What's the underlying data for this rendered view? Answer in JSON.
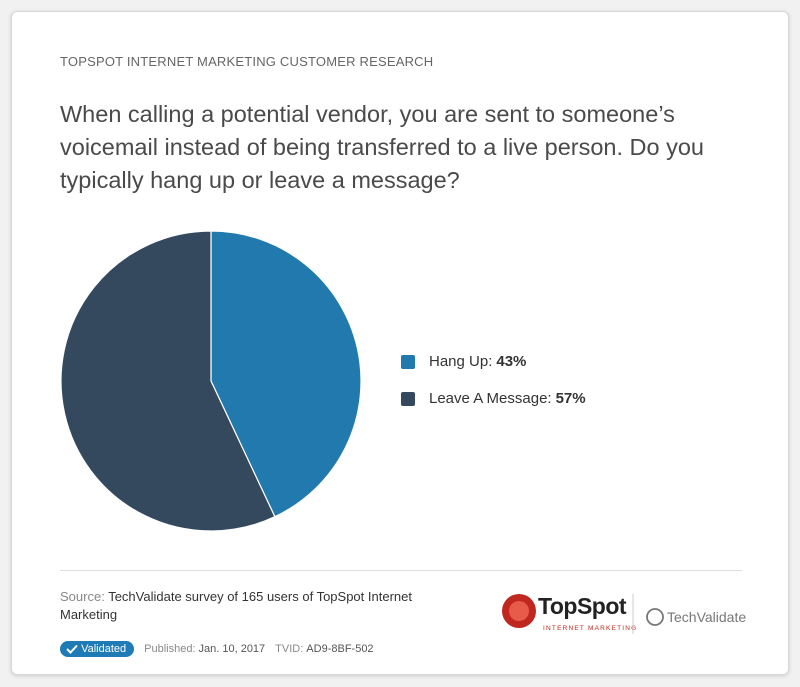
{
  "header": {
    "eyebrow": "TOPSPOT INTERNET MARKETING CUSTOMER RESEARCH"
  },
  "chart_data": {
    "type": "pie",
    "title": "When calling a potential vendor, you are sent to someone’s voicemail instead of being transferred to a live person. Do you typically hang up or leave a message?",
    "categories": [
      "Hang Up:",
      "Leave A Message:"
    ],
    "values": [
      43,
      57
    ],
    "value_labels": [
      "43%",
      "57%"
    ],
    "colors": [
      "#2179ad",
      "#34495e"
    ]
  },
  "footer": {
    "source_label": "Source:",
    "source_text": "TechValidate survey of 165 users of TopSpot Internet Marketing",
    "badge": "Validated",
    "published_label": "Published:",
    "published_date": "Jan. 10, 2017",
    "tvid_label": "TVID:",
    "tvid": "AD9-8BF-502",
    "logo_name": "TopSpot",
    "logo_tagline": "INTERNET MARKETING",
    "partner": "TechValidate"
  }
}
